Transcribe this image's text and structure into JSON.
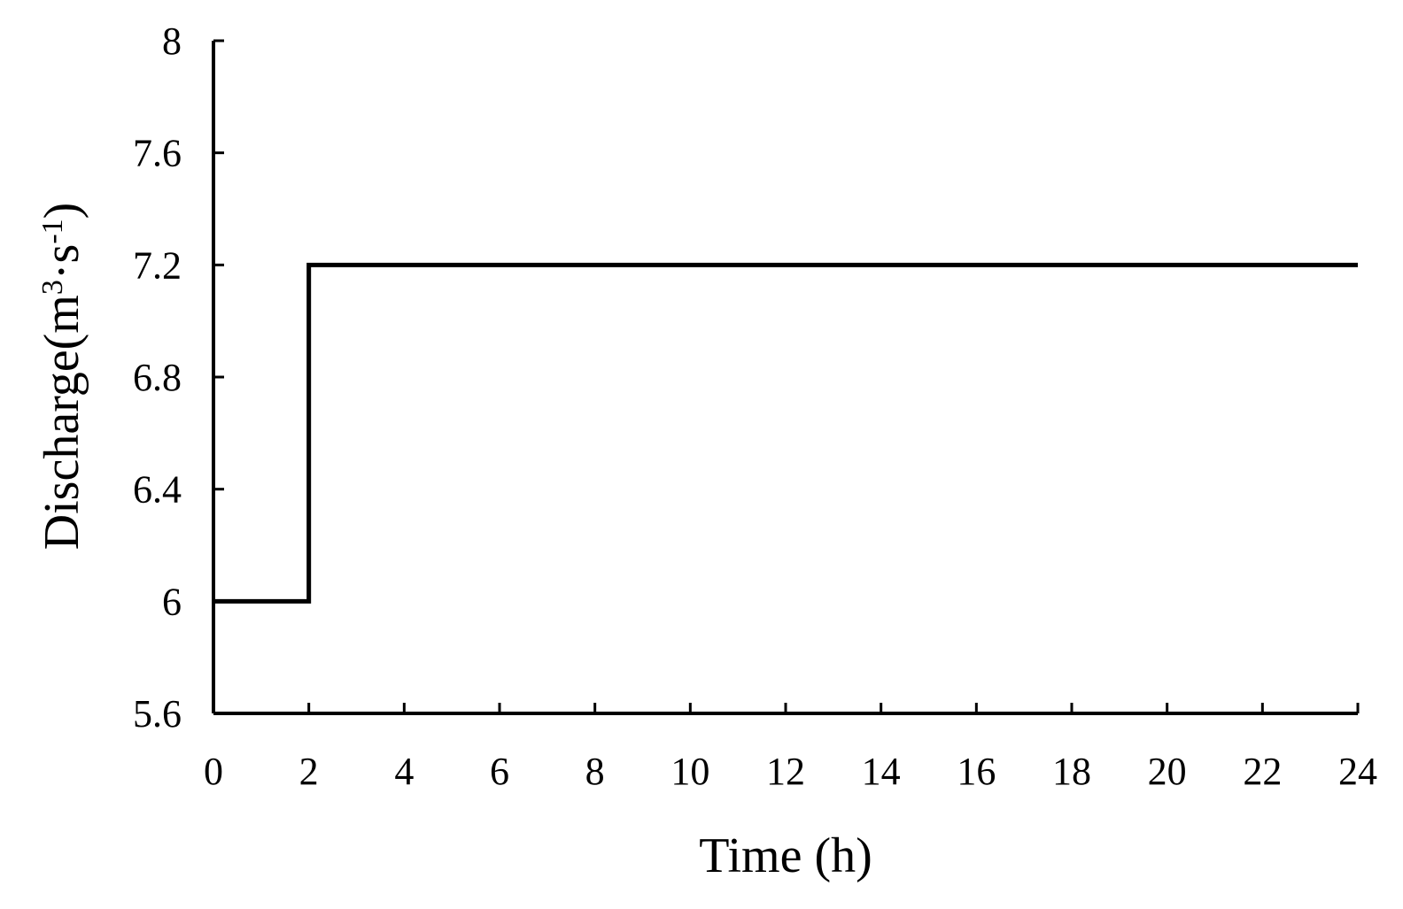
{
  "chart_data": {
    "type": "line",
    "step": true,
    "title": "",
    "xlabel": "Time (h)",
    "ylabel_main": "Discharge(m",
    "ylabel_sup1": "3",
    "ylabel_mid": "·s",
    "ylabel_sup2": "-1",
    "ylabel_end": ")",
    "xlim": [
      0,
      24
    ],
    "ylim": [
      5.6,
      8
    ],
    "x_ticks": [
      0,
      2,
      4,
      6,
      8,
      10,
      12,
      14,
      16,
      18,
      20,
      22,
      24
    ],
    "y_ticks": [
      5.6,
      6,
      6.4,
      6.8,
      7.2,
      7.6,
      8
    ],
    "y_tick_labels": [
      "5.6",
      "6",
      "6.4",
      "6.8",
      "7.2",
      "7.6",
      "8"
    ],
    "grid": false,
    "series": [
      {
        "x": [
          0,
          2,
          2,
          24
        ],
        "y": [
          6,
          6,
          7.2,
          7.2
        ],
        "color": "#000000"
      }
    ]
  }
}
